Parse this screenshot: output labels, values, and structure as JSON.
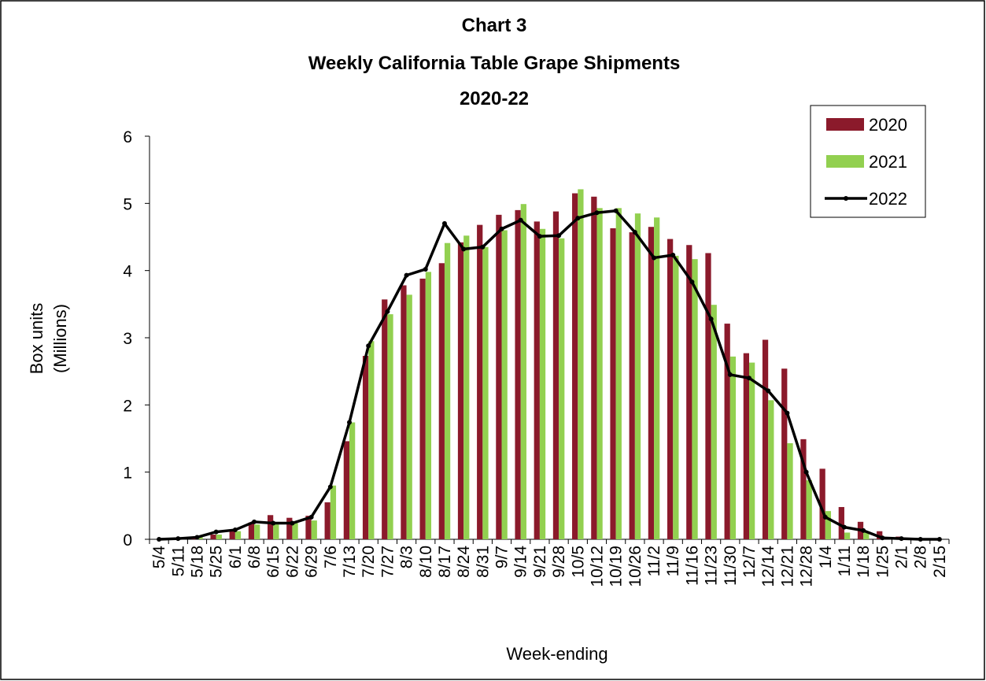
{
  "chart_data": {
    "type": "bar-line",
    "title": [
      "Chart 3",
      "Weekly California Table Grape Shipments",
      "2020-22"
    ],
    "y_label": [
      "Box units",
      "(Millions)"
    ],
    "x_label": "Week-ending",
    "categories": [
      "5/4",
      "5/11",
      "5/18",
      "5/25",
      "6/1",
      "6/8",
      "6/15",
      "6/22",
      "6/29",
      "7/6",
      "7/13",
      "7/20",
      "7/27",
      "8/3",
      "8/10",
      "8/17",
      "8/24",
      "8/31",
      "9/7",
      "9/14",
      "9/21",
      "9/28",
      "10/5",
      "10/12",
      "10/19",
      "10/26",
      "11/2",
      "11/9",
      "11/16",
      "11/23",
      "11/30",
      "12/7",
      "12/14",
      "12/21",
      "12/28",
      "1/4",
      "1/11",
      "1/18",
      "1/25",
      "2/1",
      "2/8",
      "2/15"
    ],
    "series": [
      {
        "name": "2020",
        "kind": "bar",
        "color": "#8b1a2b",
        "values": [
          0,
          0.01,
          0.02,
          0.07,
          0.13,
          0.25,
          0.36,
          0.32,
          0.35,
          0.55,
          1.46,
          2.73,
          3.57,
          3.78,
          3.88,
          4.11,
          4.42,
          4.68,
          4.83,
          4.9,
          4.73,
          4.88,
          5.15,
          5.1,
          4.63,
          4.57,
          4.65,
          4.47,
          4.38,
          4.26,
          3.21,
          2.77,
          2.97,
          2.54,
          1.49,
          1.05,
          0.48,
          0.26,
          0.12,
          0.04,
          0.01,
          0.01
        ]
      },
      {
        "name": "2021",
        "kind": "bar",
        "color": "#92d050",
        "values": [
          0,
          0.01,
          0.03,
          0.07,
          0.12,
          0.22,
          0.22,
          0.24,
          0.28,
          0.8,
          1.74,
          2.95,
          3.35,
          3.64,
          3.98,
          4.41,
          4.52,
          4.35,
          4.6,
          4.99,
          4.62,
          4.48,
          5.21,
          4.93,
          4.93,
          4.85,
          4.79,
          4.22,
          4.17,
          3.49,
          2.72,
          2.63,
          2.07,
          1.43,
          0.88,
          0.42,
          0.1,
          0.1,
          0.02,
          0.01,
          0,
          0
        ]
      },
      {
        "name": "2022",
        "kind": "line",
        "color": "#000000",
        "values": [
          0,
          0.01,
          0.03,
          0.11,
          0.14,
          0.26,
          0.24,
          0.24,
          0.33,
          0.78,
          1.74,
          2.88,
          3.39,
          3.93,
          4.02,
          4.7,
          4.32,
          4.35,
          4.62,
          4.75,
          4.51,
          4.52,
          4.78,
          4.86,
          4.89,
          4.57,
          4.19,
          4.23,
          3.83,
          3.28,
          2.45,
          2.4,
          2.21,
          1.88,
          1,
          0.33,
          0.18,
          0.13,
          0.02,
          0.01,
          0,
          0
        ]
      }
    ],
    "ylim": [
      0,
      6
    ],
    "yticks": [
      0,
      1,
      2,
      3,
      4,
      5,
      6
    ],
    "legend": "top-right"
  }
}
